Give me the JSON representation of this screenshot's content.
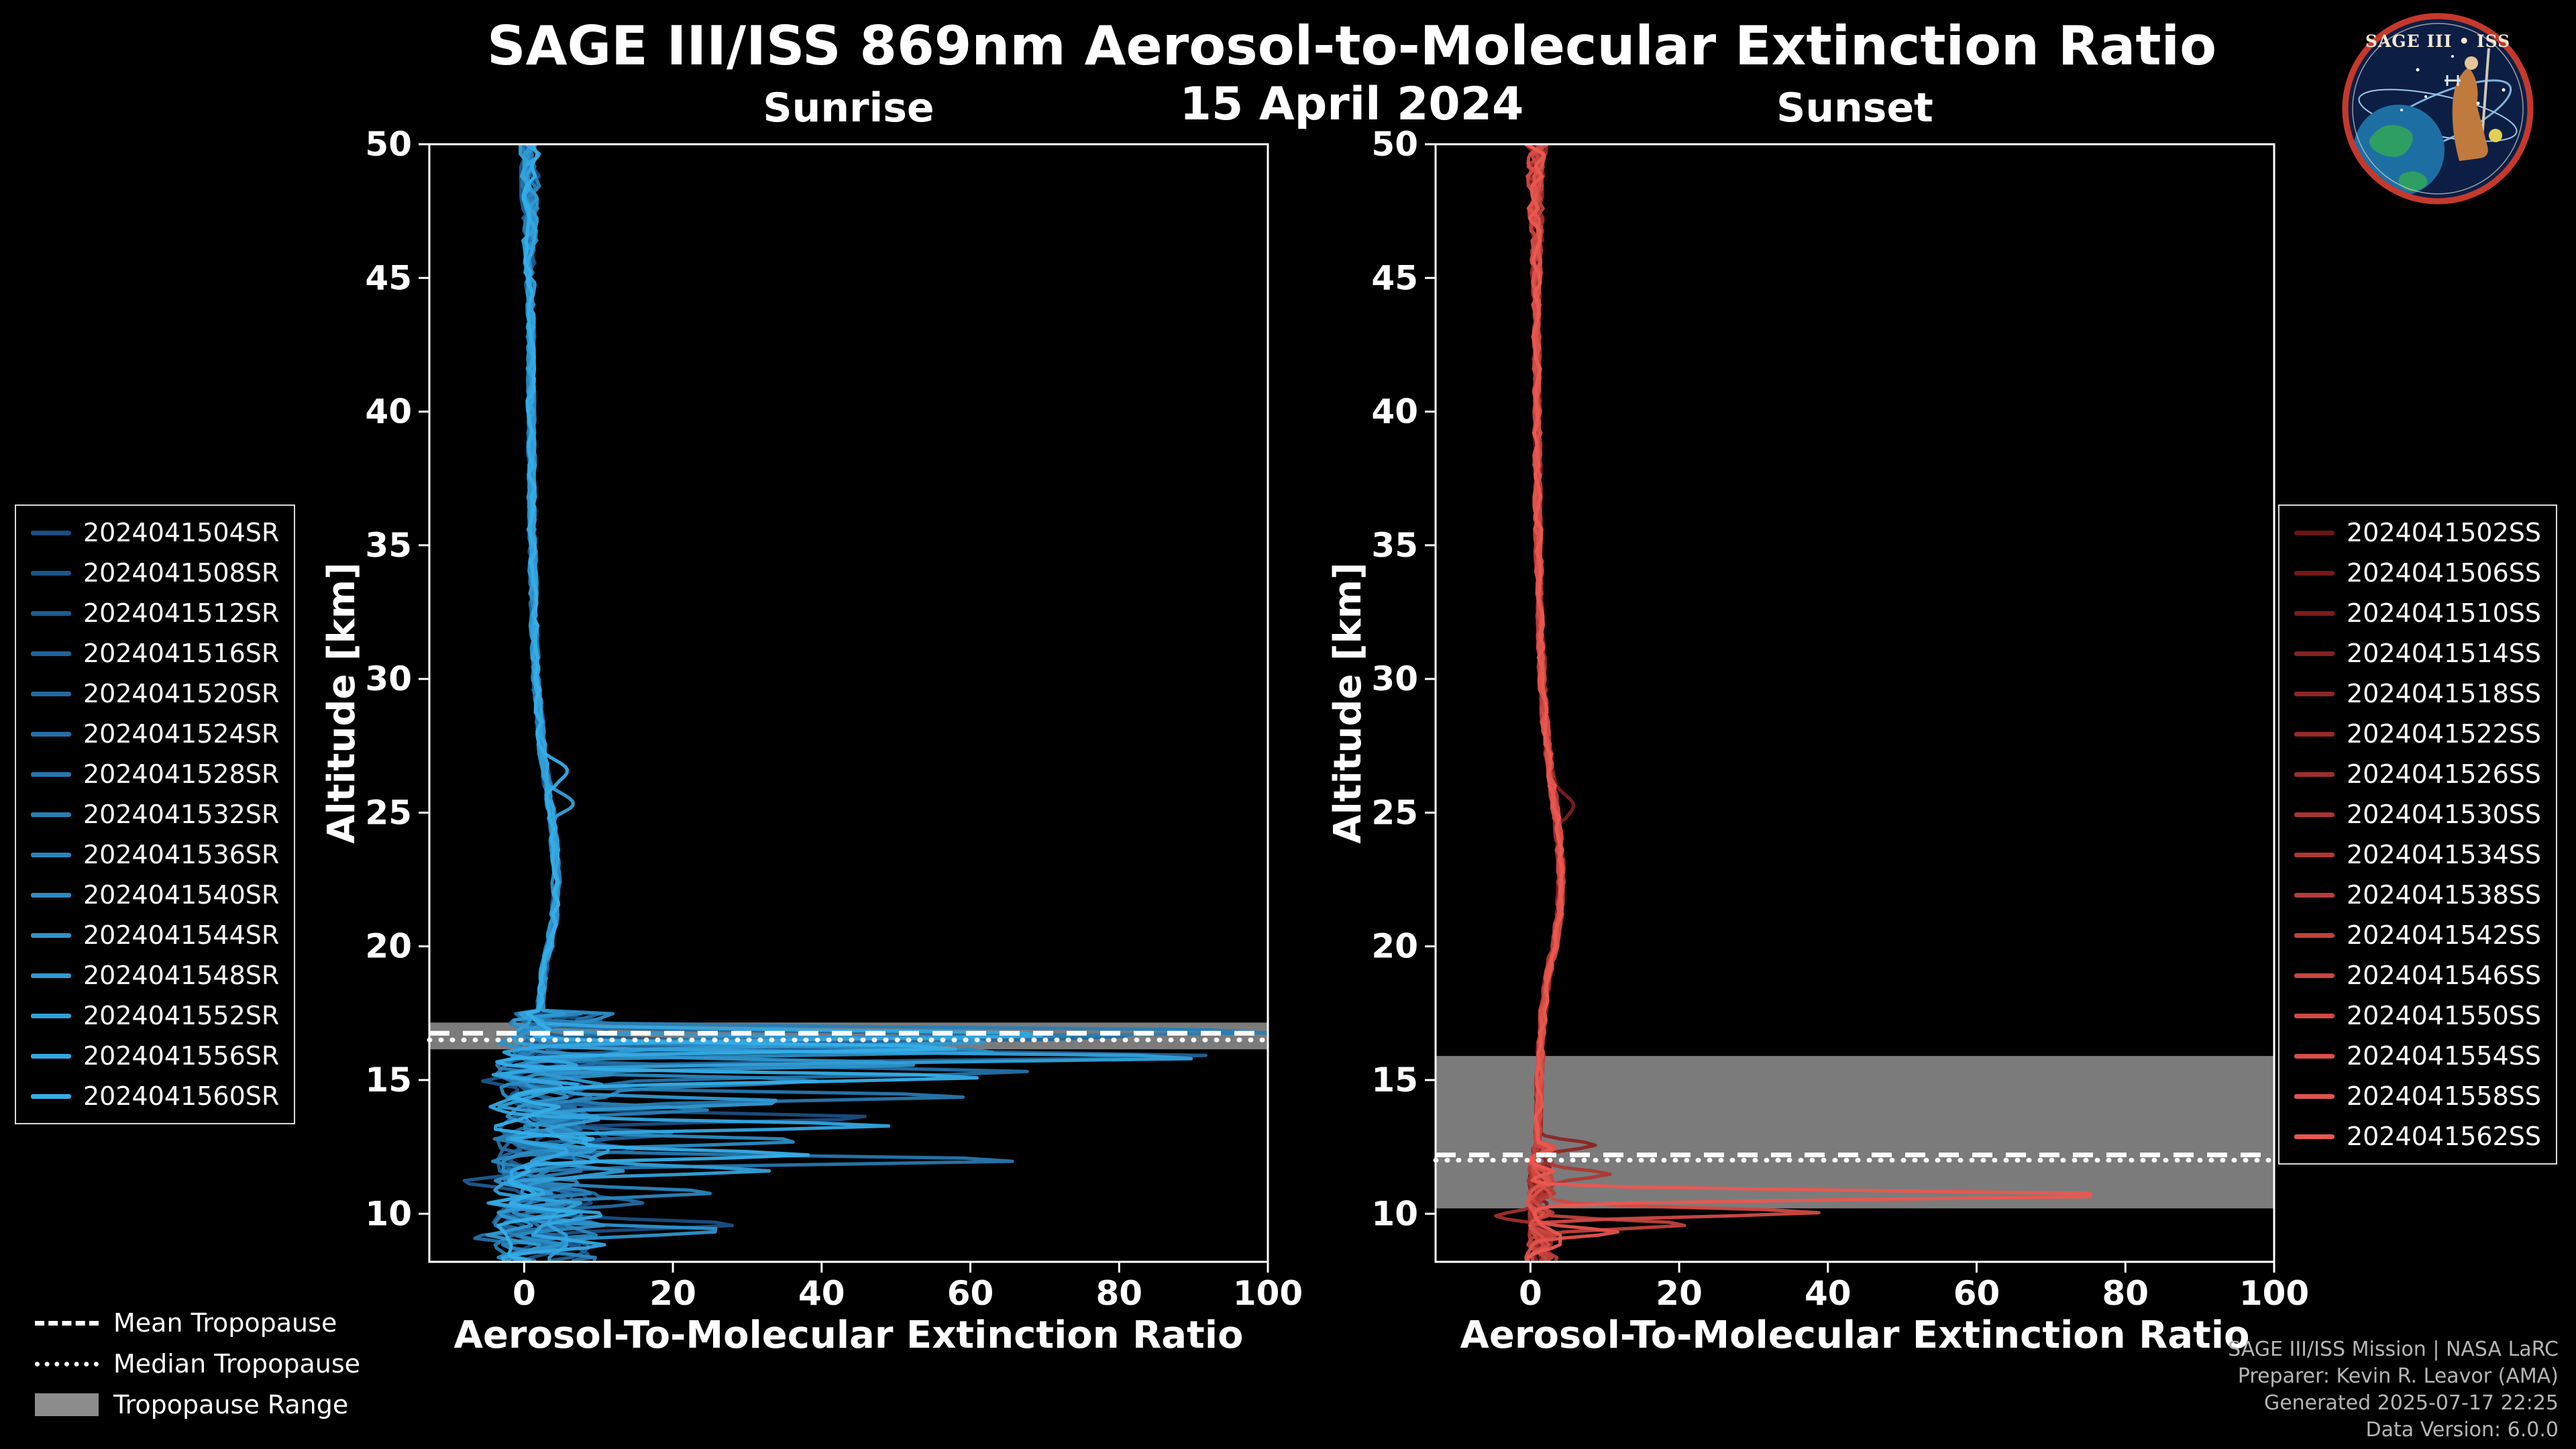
{
  "header": {
    "title": "SAGE III/ISS 869nm Aerosol-to-Molecular Extinction Ratio",
    "subtitle": "15 April 2024"
  },
  "logo": {
    "title": "SAGE III • ISS"
  },
  "legend_tropopause": {
    "mean_label": "Mean Tropopause",
    "median_label": "Median Tropopause",
    "range_label": "Tropopause Range"
  },
  "credits": {
    "lines": [
      "SAGE III/ISS Mission | NASA LaRC",
      "Preparer: Kevin R. Leavor (AMA)",
      "Generated 2025-07-17 22:25",
      "Data Version: 6.0.0"
    ]
  },
  "chart_data": [
    {
      "type": "line",
      "panel": "sunrise",
      "title": "Sunrise",
      "xlabel": "Aerosol-To-Molecular Extinction Ratio",
      "ylabel": "Altitude [km]",
      "xlim": [
        -12.75,
        100
      ],
      "ylim": [
        8.2,
        50
      ],
      "xticks": [
        0,
        20,
        40,
        60,
        80,
        100
      ],
      "yticks": [
        10,
        15,
        20,
        25,
        30,
        35,
        40,
        45,
        50
      ],
      "grid": false,
      "legend_position": "outside-left",
      "line_color_range": [
        "#1A4E82",
        "#35AEE8"
      ],
      "tropopause": {
        "mean_km": 16.75,
        "median_km": 16.5,
        "range_km": [
          16.15,
          17.15
        ]
      },
      "baseline_profile": [
        [
          8.2,
          1.2
        ],
        [
          9,
          1.0
        ],
        [
          10,
          1.2
        ],
        [
          11,
          1.0
        ],
        [
          12,
          1.2
        ],
        [
          13,
          1.0
        ],
        [
          14,
          1.3
        ],
        [
          15,
          1.5
        ],
        [
          16,
          1.8
        ],
        [
          17,
          2.0
        ],
        [
          18,
          2.2
        ],
        [
          19,
          2.6
        ],
        [
          20,
          3.4
        ],
        [
          21,
          4.0
        ],
        [
          22,
          4.3
        ],
        [
          23,
          4.3
        ],
        [
          24,
          4.0
        ],
        [
          25,
          3.6
        ],
        [
          26,
          3.2
        ],
        [
          27,
          2.6
        ],
        [
          28,
          2.2
        ],
        [
          29,
          1.9
        ],
        [
          30,
          1.6
        ],
        [
          32,
          1.35
        ],
        [
          34,
          1.2
        ],
        [
          36,
          1.05
        ],
        [
          38,
          1.0
        ],
        [
          40,
          0.95
        ],
        [
          42,
          0.9
        ],
        [
          44,
          0.85
        ],
        [
          46,
          0.8
        ],
        [
          48,
          0.8
        ],
        [
          50,
          0.8
        ]
      ],
      "noise": {
        "knot_km": 0.4,
        "upper_amp": 0.55,
        "top_amp": 1.6,
        "sub_start_km": 17.5
      },
      "series": [
        {
          "name": "2024041504SR",
          "color": "#1A4E82",
          "seed": 11,
          "sub_amp": 4.5,
          "spikes": [
            [
              13.6,
              50
            ],
            [
              9.6,
              26
            ]
          ]
        },
        {
          "name": "2024041508SR",
          "color": "#1C5589",
          "seed": 12,
          "sub_amp": 5.5,
          "spikes": [
            [
              14.9,
              -10
            ],
            [
              12.4,
              18
            ]
          ]
        },
        {
          "name": "2024041512SR",
          "color": "#1E5C91",
          "seed": 13,
          "sub_amp": 4.5,
          "spikes": [
            [
              16.3,
              56
            ],
            [
              11.2,
              -8
            ]
          ]
        },
        {
          "name": "2024041516SR",
          "color": "#206398",
          "seed": 14,
          "sub_amp": 5.5,
          "spikes": [
            [
              15.9,
              84
            ],
            [
              13.0,
              20
            ]
          ]
        },
        {
          "name": "2024041520SR",
          "color": "#2269A0",
          "seed": 15,
          "sub_amp": 5,
          "spikes": [
            [
              16.6,
              82
            ],
            [
              10.4,
              16
            ]
          ]
        },
        {
          "name": "2024041524SR",
          "color": "#2470A7",
          "seed": 16,
          "sub_amp": 5.5,
          "spikes": [
            [
              15.3,
              62
            ],
            [
              9.0,
              -8
            ]
          ]
        },
        {
          "name": "2024041528SR",
          "color": "#2677AE",
          "seed": 17,
          "sub_amp": 5,
          "spikes": [
            [
              14.4,
              54
            ],
            [
              12.0,
              66
            ]
          ]
        },
        {
          "name": "2024041532SR",
          "color": "#287EB5",
          "seed": 18,
          "sub_amp": 6,
          "spikes": [
            [
              16.8,
              98
            ],
            [
              13.9,
              26
            ]
          ]
        },
        {
          "name": "2024041536SR",
          "color": "#2985BC",
          "seed": 19,
          "sub_amp": 6.5,
          "spikes": [
            [
              15.0,
              38
            ],
            [
              10.8,
              22
            ]
          ]
        },
        {
          "name": "2024041540SR",
          "color": "#2B8CC4",
          "seed": 20,
          "sub_amp": 6,
          "spikes": [
            [
              16.1,
              58
            ],
            [
              12.7,
              28
            ]
          ]
        },
        {
          "name": "2024041544SR",
          "color": "#2D93CB",
          "seed": 21,
          "sub_amp": 6,
          "spikes": [
            [
              15.6,
              44
            ],
            [
              9.4,
              28
            ]
          ]
        },
        {
          "name": "2024041548SR",
          "color": "#2F99D2",
          "seed": 22,
          "sub_amp": 6.5,
          "spikes": [
            [
              16.45,
              68
            ],
            [
              14.2,
              34
            ]
          ]
        },
        {
          "name": "2024041552SR",
          "color": "#31A0D9",
          "seed": 23,
          "sub_amp": 6,
          "spikes": [
            [
              15.85,
              86
            ],
            [
              11.6,
              24
            ],
            [
              25.4,
              3.2,
              0.5
            ]
          ]
        },
        {
          "name": "2024041556SR",
          "color": "#33A7E1",
          "seed": 24,
          "sub_amp": 6.5,
          "spikes": [
            [
              16.7,
              76
            ],
            [
              13.3,
              46
            ]
          ]
        },
        {
          "name": "2024041560SR",
          "color": "#35AEE8",
          "seed": 25,
          "sub_amp": 7,
          "spikes": [
            [
              16.2,
              64
            ],
            [
              15.1,
              52
            ],
            [
              12.2,
              38
            ],
            [
              26.6,
              2.8,
              0.5
            ]
          ]
        }
      ]
    },
    {
      "type": "line",
      "panel": "sunset",
      "title": "Sunset",
      "xlabel": "Aerosol-To-Molecular Extinction Ratio",
      "ylabel": "Altitude [km]",
      "xlim": [
        -12.75,
        100
      ],
      "ylim": [
        8.2,
        50
      ],
      "xticks": [
        0,
        20,
        40,
        60,
        80,
        100
      ],
      "yticks": [
        10,
        15,
        20,
        25,
        30,
        35,
        40,
        45,
        50
      ],
      "grid": false,
      "legend_position": "outside-right",
      "line_color_range": [
        "#6A1414",
        "#EA5850"
      ],
      "tropopause": {
        "mean_km": 12.2,
        "median_km": 12.0,
        "range_km": [
          10.2,
          15.9
        ]
      },
      "baseline_profile": [
        [
          8.2,
          0.8
        ],
        [
          9,
          0.8
        ],
        [
          10,
          0.9
        ],
        [
          11,
          0.8
        ],
        [
          12,
          0.9
        ],
        [
          13,
          1.0
        ],
        [
          14,
          1.1
        ],
        [
          15,
          1.2
        ],
        [
          16,
          1.4
        ],
        [
          17,
          1.6
        ],
        [
          18,
          1.9
        ],
        [
          19,
          2.4
        ],
        [
          20,
          3.2
        ],
        [
          21,
          3.8
        ],
        [
          22,
          4.1
        ],
        [
          23,
          4.1
        ],
        [
          24,
          3.8
        ],
        [
          25,
          3.4
        ],
        [
          26,
          3.0
        ],
        [
          27,
          2.5
        ],
        [
          28,
          2.1
        ],
        [
          29,
          1.8
        ],
        [
          30,
          1.6
        ],
        [
          32,
          1.3
        ],
        [
          34,
          1.15
        ],
        [
          36,
          1.0
        ],
        [
          38,
          0.95
        ],
        [
          40,
          0.9
        ],
        [
          42,
          0.85
        ],
        [
          44,
          0.8
        ],
        [
          46,
          0.8
        ],
        [
          48,
          0.8
        ],
        [
          50,
          0.8
        ]
      ],
      "noise": {
        "knot_km": 0.4,
        "upper_amp": 0.5,
        "top_amp": 1.5,
        "sub_start_km": 12.6
      },
      "series": [
        {
          "name": "2024041502SS",
          "color": "#6A1414",
          "seed": 31,
          "sub_amp": 1.0,
          "spikes": []
        },
        {
          "name": "2024041506SS",
          "color": "#731918",
          "seed": 32,
          "sub_amp": 1.1,
          "spikes": []
        },
        {
          "name": "2024041510SS",
          "color": "#7B1D1C",
          "seed": 33,
          "sub_amp": 1.0,
          "spikes": [
            [
              25.3,
              2.2,
              0.5
            ]
          ]
        },
        {
          "name": "2024041514SS",
          "color": "#842220",
          "seed": 34,
          "sub_amp": 1.2,
          "spikes": []
        },
        {
          "name": "2024041518SS",
          "color": "#8C2624",
          "seed": 35,
          "sub_amp": 1.0,
          "spikes": [
            [
              12.6,
              7
            ]
          ]
        },
        {
          "name": "2024041522SS",
          "color": "#952B28",
          "seed": 36,
          "sub_amp": 1.3,
          "spikes": []
        },
        {
          "name": "2024041526SS",
          "color": "#9D2F2C",
          "seed": 37,
          "sub_amp": 1.1,
          "spikes": [
            [
              9.9,
              -6
            ]
          ]
        },
        {
          "name": "2024041530SS",
          "color": "#A63430",
          "seed": 38,
          "sub_amp": 1.4,
          "spikes": []
        },
        {
          "name": "2024041534SS",
          "color": "#AE3834",
          "seed": 39,
          "sub_amp": 1.2,
          "spikes": [
            [
              11.5,
              10
            ]
          ]
        },
        {
          "name": "2024041538SS",
          "color": "#B73D38",
          "seed": 40,
          "sub_amp": 1.5,
          "spikes": []
        },
        {
          "name": "2024041542SS",
          "color": "#BF413C",
          "seed": 41,
          "sub_amp": 1.3,
          "spikes": [
            [
              9.6,
              19
            ]
          ]
        },
        {
          "name": "2024041546SS",
          "color": "#C84640",
          "seed": 42,
          "sub_amp": 1.5,
          "spikes": []
        },
        {
          "name": "2024041550SS",
          "color": "#D04A44",
          "seed": 43,
          "sub_amp": 1.4,
          "spikes": [
            [
              10.05,
              37
            ]
          ]
        },
        {
          "name": "2024041554SS",
          "color": "#D94F48",
          "seed": 44,
          "sub_amp": 1.6,
          "spikes": []
        },
        {
          "name": "2024041558SS",
          "color": "#E1534C",
          "seed": 45,
          "sub_amp": 1.5,
          "spikes": [
            [
              9.3,
              12
            ]
          ]
        },
        {
          "name": "2024041562SS",
          "color": "#EA5850",
          "seed": 46,
          "sub_amp": 1.7,
          "spikes": [
            [
              10.7,
              80
            ]
          ]
        }
      ]
    }
  ]
}
